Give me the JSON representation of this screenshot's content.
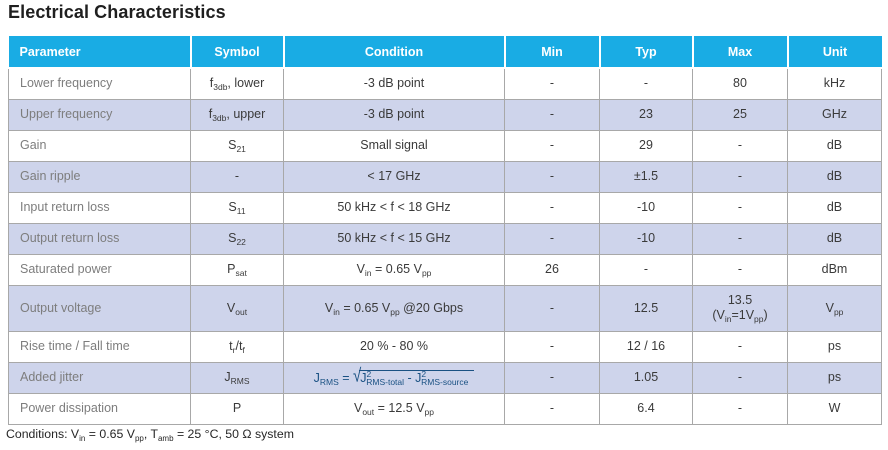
{
  "page": {
    "title": "Electrical Characteristics",
    "footnote": "Conditions: V<sub>in</sub> = 0.65 V<sub>pp</sub>, T<sub>amb</sub> = 25 °C, 50 Ω system"
  },
  "colors": {
    "header_bg": "#19ACE4",
    "row_shaded": "#CED4EB",
    "border": "#A8A8A8",
    "formula_blue": "#1A5183",
    "parameter_text": "#7D7D7D",
    "cell_text": "#3A3A3A"
  },
  "table": {
    "columns": [
      "Parameter",
      "Symbol",
      "Condition",
      "Min",
      "Typ",
      "Max",
      "Unit"
    ],
    "rows": [
      {
        "parameter": "Lower frequency",
        "symbol": "f<sub>3db</sub>, lower",
        "condition": "-3 dB point",
        "min": "-",
        "typ": "-",
        "max": "80",
        "unit": "kHz",
        "shaded": false,
        "tall": false
      },
      {
        "parameter": "Upper frequency",
        "symbol": "f<sub>3db</sub>, upper",
        "condition": "-3 dB point",
        "min": "-",
        "typ": "23",
        "max": "25",
        "unit": "GHz",
        "shaded": true,
        "tall": false
      },
      {
        "parameter": "Gain",
        "symbol": "S<sub>21</sub>",
        "condition": "Small signal",
        "min": "-",
        "typ": "29",
        "max": "-",
        "unit": "dB",
        "shaded": false,
        "tall": false
      },
      {
        "parameter": "Gain ripple",
        "symbol": "-",
        "condition": "&lt; 17 GHz",
        "min": "-",
        "typ": "±1.5",
        "max": "-",
        "unit": "dB",
        "shaded": true,
        "tall": false
      },
      {
        "parameter": "Input return loss",
        "symbol": "S<sub>11</sub>",
        "condition": "50 kHz &lt; f &lt; 18 GHz",
        "min": "-",
        "typ": "-10",
        "max": "-",
        "unit": "dB",
        "shaded": false,
        "tall": false
      },
      {
        "parameter": "Output return loss",
        "symbol": "S<sub>22</sub>",
        "condition": "50 kHz &lt; f &lt; 15 GHz",
        "min": "-",
        "typ": "-10",
        "max": "-",
        "unit": "dB",
        "shaded": true,
        "tall": false
      },
      {
        "parameter": "Saturated power",
        "symbol": "P<sub>sat</sub>",
        "condition": "V<sub>in</sub> = 0.65 V<sub>pp</sub>",
        "min": "26",
        "typ": "-",
        "max": "-",
        "unit": "dBm",
        "shaded": false,
        "tall": false
      },
      {
        "parameter": "Output voltage",
        "symbol": "V<sub>out</sub>",
        "condition": "V<sub>in</sub> = 0.65 V<sub>pp</sub> @20 Gbps",
        "min": "-",
        "typ": "12.5",
        "max": "13.5<br>(V<sub>in</sub>=1V<sub>pp</sub>)",
        "unit": "V<sub>pp</sub>",
        "shaded": true,
        "tall": true
      },
      {
        "parameter": "Rise time / Fall time",
        "symbol": "t<sub>r</sub>/t<sub>f</sub>",
        "condition": "20 % - 80 %",
        "min": "-",
        "typ": "12 / 16",
        "max": "-",
        "unit": "ps",
        "shaded": false,
        "tall": false
      },
      {
        "parameter": "Added jitter",
        "symbol": "J<sub>RMS</sub>",
        "condition": "<span class='formula'>J<sub>RMS</sub> = <span class='radical'>√</span><span class='radicand'>J<sup>2</sup><sub class='tuck'>RMS-total</sub> - J<sup>2</sup><sub class='tuck'>RMS-source</sub></span></span>",
        "min": "-",
        "typ": "1.05",
        "max": "-",
        "unit": "ps",
        "shaded": true,
        "tall": false
      },
      {
        "parameter": "Power dissipation",
        "symbol": "P",
        "condition": "V<sub>out</sub> = 12.5 V<sub>pp</sub>",
        "min": "-",
        "typ": "6.4",
        "max": "-",
        "unit": "W",
        "shaded": false,
        "tall": false
      }
    ]
  }
}
